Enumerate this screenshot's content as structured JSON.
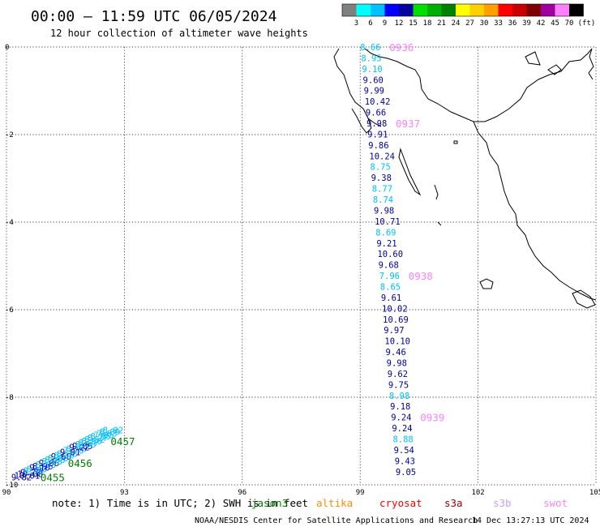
{
  "header": {
    "title": "00:00 – 11:59 UTC 06/05/2024",
    "subtitle": "12 hour collection of altimeter wave heights"
  },
  "colorbar": {
    "unit": "(ft)",
    "labels": [
      "3",
      "6",
      "9",
      "12",
      "15",
      "18",
      "21",
      "24",
      "27",
      "30",
      "33",
      "36",
      "39",
      "42",
      "45",
      "70"
    ],
    "colors": [
      "#808080",
      "#00ffff",
      "#00c0ff",
      "#0000ff",
      "#0000a0",
      "#00e000",
      "#00b000",
      "#008000",
      "#ffff00",
      "#ffd000",
      "#ffa000",
      "#ff0000",
      "#c80000",
      "#800000",
      "#a000a0",
      "#ff80ff",
      "#000000"
    ]
  },
  "map": {
    "x_ticks": [
      "90",
      "93",
      "96",
      "99",
      "102",
      "105"
    ],
    "y_ticks": [
      "0",
      "-2",
      "-4",
      "-6",
      "-8",
      "-10"
    ],
    "xlim": [
      90,
      105
    ],
    "ylim": [
      -10,
      0
    ]
  },
  "tracks": [
    {
      "name": "track-west",
      "start": [
        -9.82,
        90.12
      ],
      "end": [
        -8.75,
        92.45
      ],
      "values": [
        "9.82",
        "10.01",
        "10.08",
        "9.22",
        "8.54",
        "8.43",
        "9.10",
        "8.96",
        "8.63",
        "9.06",
        "8.58",
        "8.63",
        "8.88",
        "9.60",
        "8.19",
        "8.38",
        "9.01",
        "7.78",
        "8.75",
        "9.22",
        "9.05",
        "8.58",
        "8.77",
        "8.50",
        "8.52",
        "8.27",
        "8.55",
        "7.65",
        "7.63",
        "8.09",
        "8.02"
      ],
      "colors": [
        "#0000a0",
        "#0000a0",
        "#0000a0",
        "#0000a0",
        "#00c0ff",
        "#00c0ff",
        "#0000a0",
        "#0000ff",
        "#00c0ff",
        "#0000a0",
        "#00c0ff",
        "#00c0ff",
        "#00c0ff",
        "#0000a0",
        "#00c0ff",
        "#00c0ff",
        "#0000a0",
        "#00c0ff",
        "#00c0ff",
        "#0000a0",
        "#0000a0",
        "#00c0ff",
        "#00c0ff",
        "#00c0ff",
        "#00c0ff",
        "#00c0ff",
        "#00c0ff",
        "#00c0ff",
        "#00c0ff",
        "#00c0ff",
        "#00c0ff"
      ],
      "times": [
        {
          "label": "0455",
          "index": 0
        },
        {
          "label": "0456",
          "index": 9
        },
        {
          "label": "0457",
          "index": 23
        }
      ]
    },
    {
      "name": "track-east",
      "start": [
        0.0,
        99.0
      ],
      "end": [
        -9.7,
        99.9
      ],
      "values": [
        "8.66",
        "8.95",
        "9.10",
        "9.60",
        "9.99",
        "10.42",
        "9.66",
        "9.98",
        "9.91",
        "9.86",
        "10.24",
        "8.75",
        "9.38",
        "8.77",
        "8.74",
        "9.98",
        "10.71",
        "8.69",
        "9.21",
        "10.60",
        "9.68",
        "7.96",
        "8.65",
        "9.61",
        "10.02",
        "10.69",
        "9.97",
        "10.10",
        "9.46",
        "9.98",
        "9.62",
        "9.75",
        "8.98",
        "9.18",
        "9.24",
        "9.24",
        "8.88",
        "9.54",
        "9.43",
        "9.05"
      ],
      "colors": [
        "#00c0ff",
        "#00c0ff",
        "#00c0ff",
        "#0000a0",
        "#0000a0",
        "#0000a0",
        "#0000a0",
        "#0000a0",
        "#0000a0",
        "#0000a0",
        "#0000a0",
        "#00c0ff",
        "#0000a0",
        "#00c0ff",
        "#00c0ff",
        "#0000a0",
        "#0000a0",
        "#00c0ff",
        "#0000a0",
        "#0000a0",
        "#0000a0",
        "#00c0ff",
        "#00c0ff",
        "#0000a0",
        "#0000a0",
        "#0000a0",
        "#0000a0",
        "#0000a0",
        "#0000a0",
        "#0000a0",
        "#0000a0",
        "#0000a0",
        "#00c0ff",
        "#0000a0",
        "#0000a0",
        "#0000a0",
        "#00c0ff",
        "#0000a0",
        "#0000a0",
        "#0000a0"
      ],
      "times": [
        {
          "label": "0936",
          "index": 0
        },
        {
          "label": "0937",
          "index": 7
        },
        {
          "label": "0938",
          "index": 21
        },
        {
          "label": "0939",
          "index": 34
        }
      ]
    }
  ],
  "footer": {
    "note": "note: 1) Time is in UTC; 2) SWH is in feet",
    "satellites": [
      {
        "name": "jason3",
        "color": "#008000"
      },
      {
        "name": "altika",
        "color": "#ff8c00"
      },
      {
        "name": "cryosat",
        "color": "#ff0000"
      },
      {
        "name": "s3a",
        "color": "#a00000"
      },
      {
        "name": "s3b",
        "color": "#c8a0ff"
      },
      {
        "name": "swot",
        "color": "#ff80ff"
      }
    ],
    "credit": "NOAA/NESDIS Center for Satellite Applications and Research",
    "timestamp": "14 Dec 13:27:13 UTC 2024"
  }
}
